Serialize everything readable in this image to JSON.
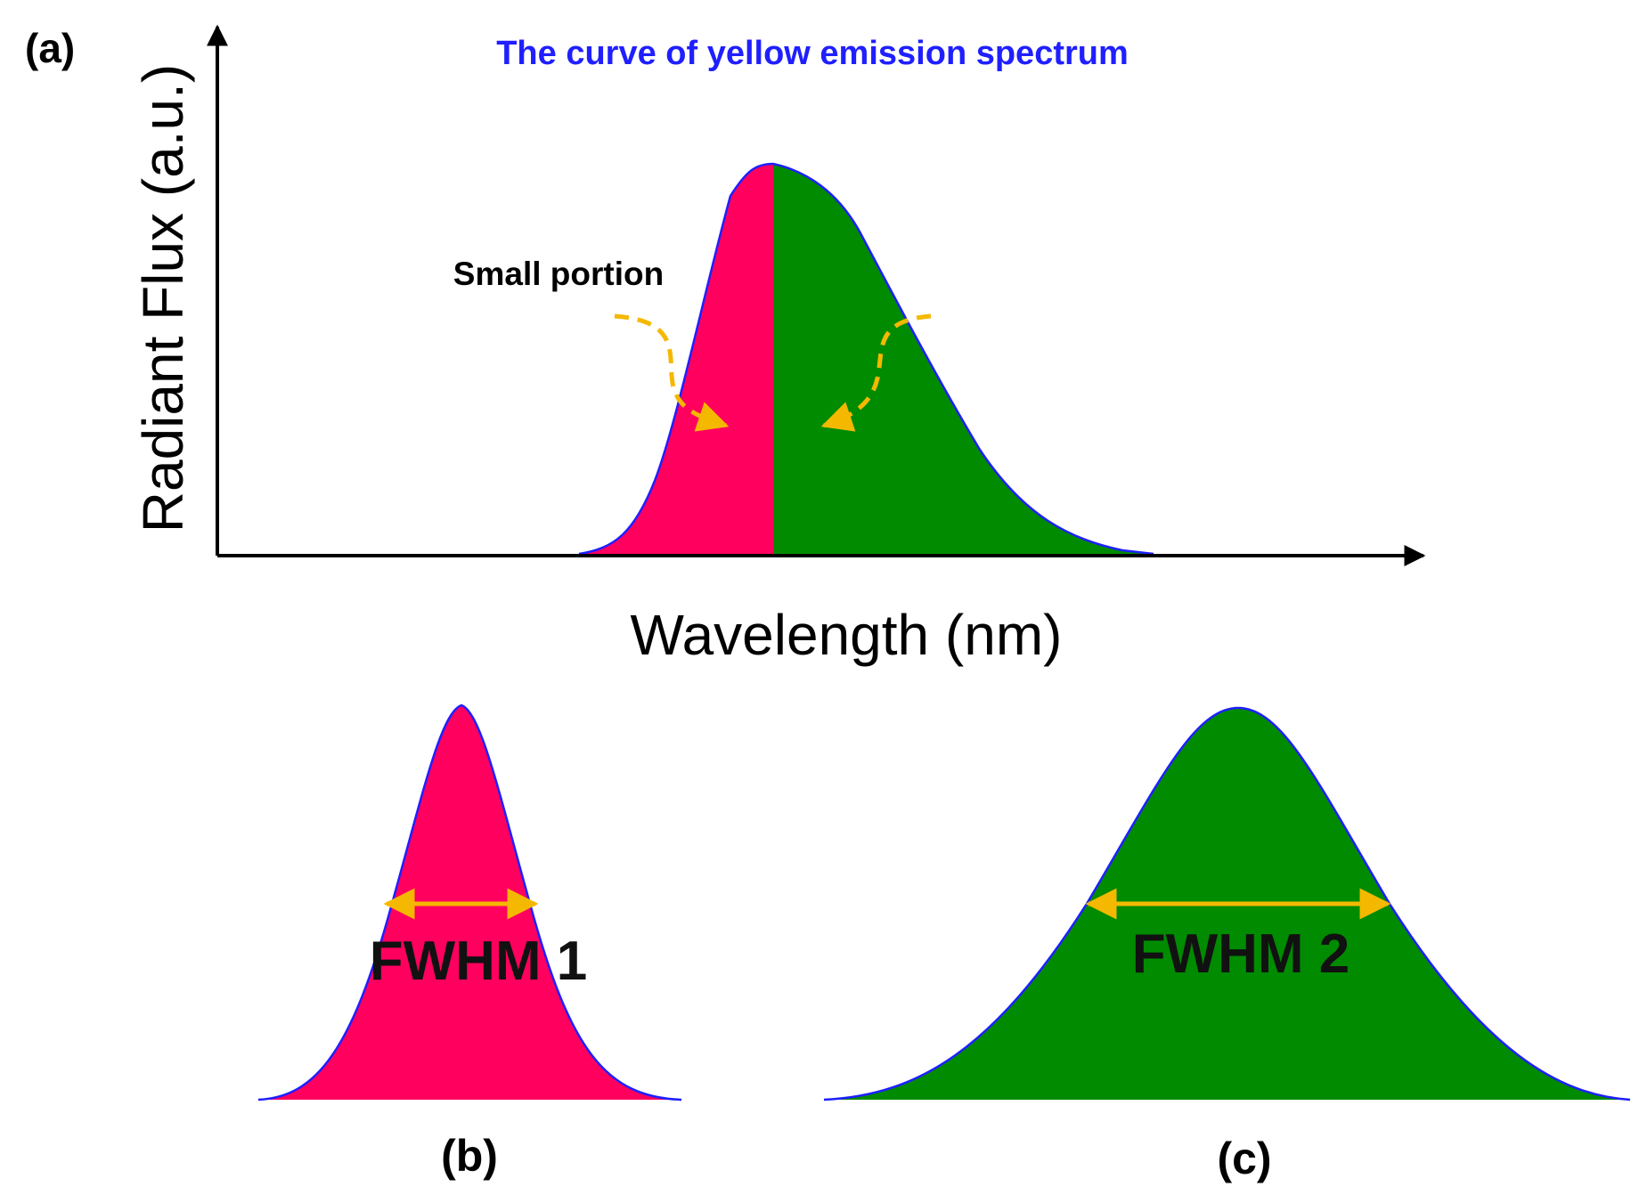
{
  "panel_a": {
    "label": "(a)",
    "title": "The curve of yellow emission spectrum",
    "annotation": "Small portion",
    "xlabel": "Wavelength (nm)",
    "ylabel": "Radiant Flux (a.u.)"
  },
  "panel_b": {
    "label": "(b)",
    "fwhm_label": "FWHM 1"
  },
  "panel_c": {
    "label": "(c)",
    "fwhm_label": "FWHM 2"
  },
  "colors": {
    "red_fill": "#ff005f",
    "green_fill": "#008b00",
    "outline": "#1f1fff",
    "arrow": "#f5b800",
    "title_text": "#1f1fff",
    "axis": "#000000"
  }
}
